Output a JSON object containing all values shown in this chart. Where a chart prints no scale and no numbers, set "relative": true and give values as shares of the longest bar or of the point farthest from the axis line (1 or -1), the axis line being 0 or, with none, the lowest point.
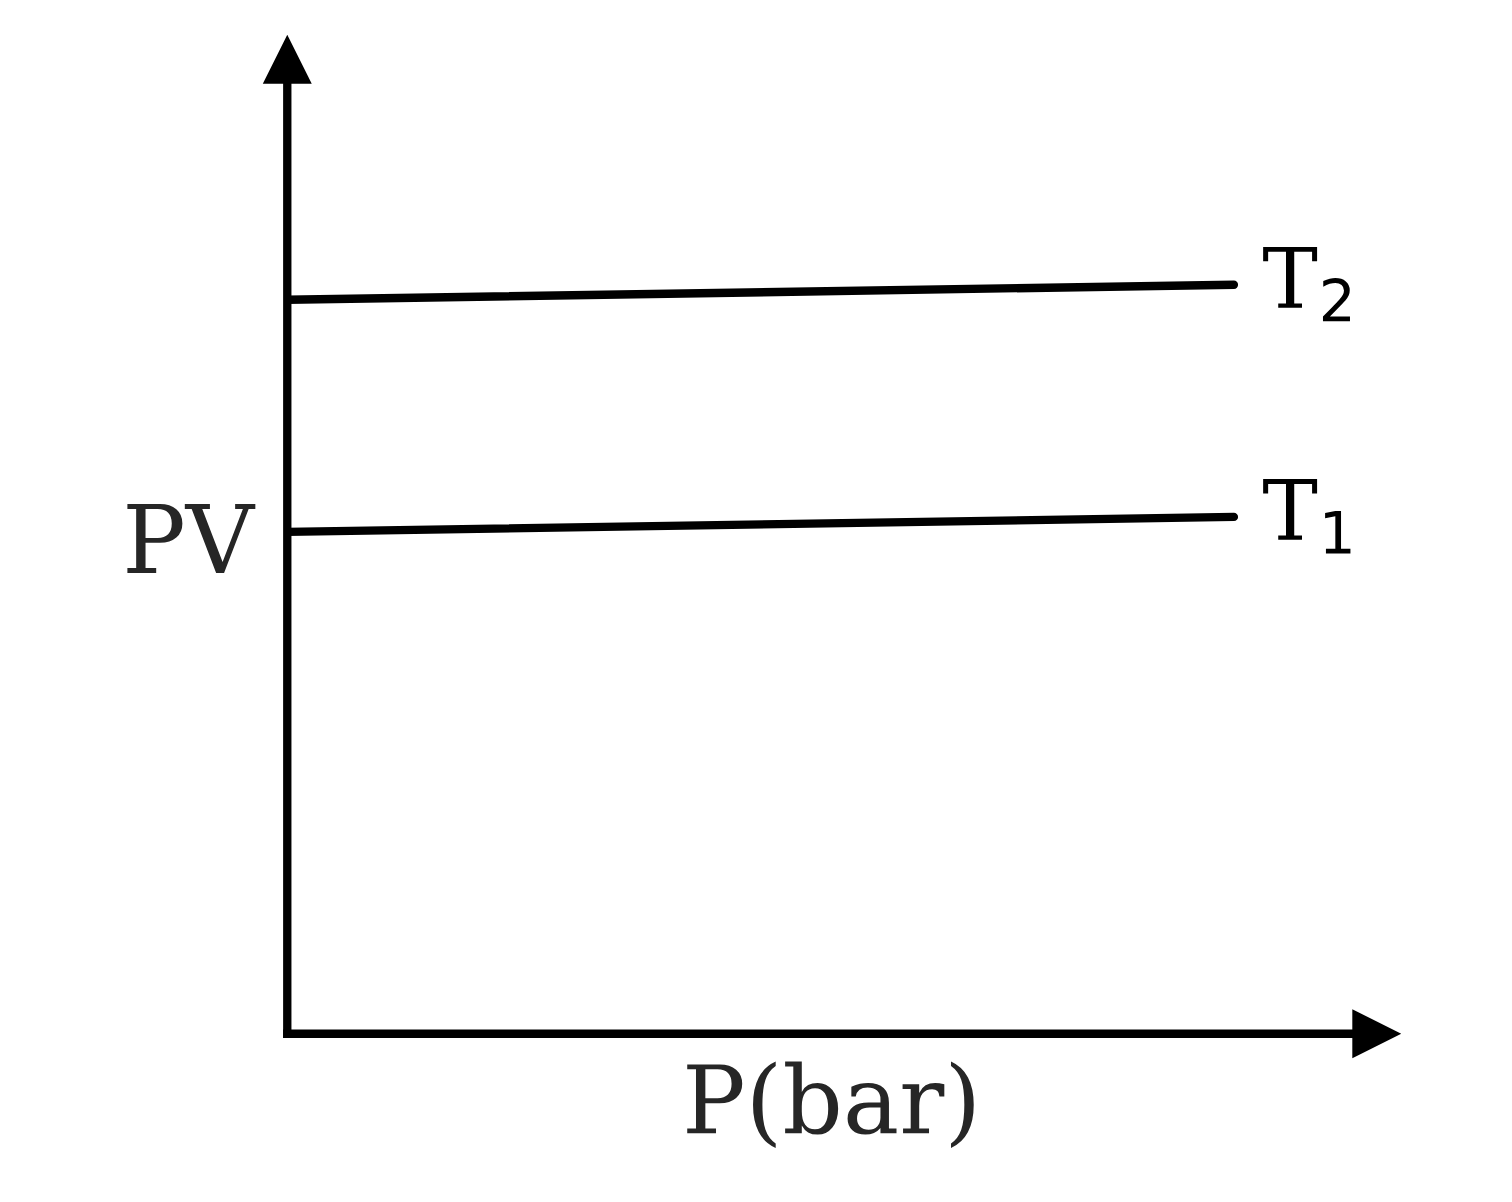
{
  "chart_data": {
    "type": "line",
    "relative": true,
    "xlabel": "P(bar)",
    "ylabel": "PV",
    "categories": [
      null,
      null
    ],
    "series": [
      {
        "name": "T$_{2}$",
        "color": "#000000",
        "values": [
          0.98,
          1
        ]
      },
      {
        "name": "T$_{1}$",
        "color": "#000000",
        "values": [
          0.67,
          0.69
        ]
      }
    ],
    "legend": false,
    "marker": "none",
    "line_style": "solid",
    "tick_labels": false
  }
}
